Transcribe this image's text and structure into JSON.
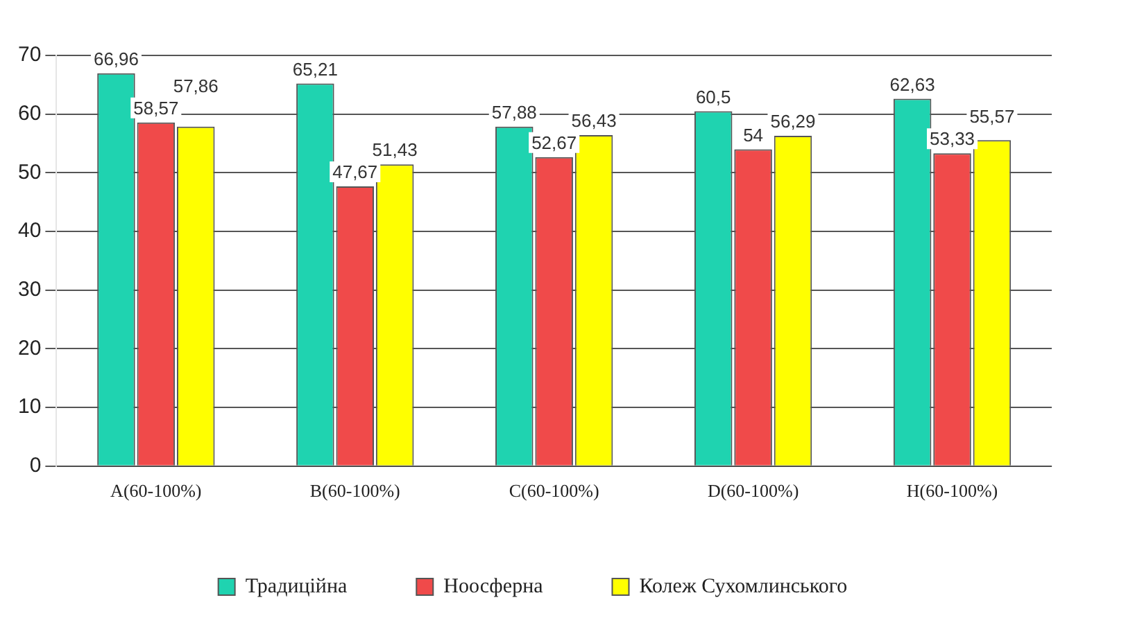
{
  "chart_data": {
    "type": "bar",
    "categories": [
      "A(60-100%)",
      "B(60-100%)",
      "C(60-100%)",
      "D(60-100%)",
      "H(60-100%)"
    ],
    "series": [
      {
        "name": "Традиційна",
        "color": "#1fd3b0",
        "values": [
          66.96,
          65.21,
          57.88,
          60.5,
          62.63
        ],
        "value_labels": [
          "66,96",
          "65,21",
          "57,88",
          "60,5",
          "62,63"
        ]
      },
      {
        "name": "Ноосферна",
        "color": "#f04a4a",
        "values": [
          58.57,
          47.67,
          52.67,
          54,
          53.33
        ],
        "value_labels": [
          "58,57",
          "47,67",
          "52,67",
          "54",
          "53,33"
        ]
      },
      {
        "name": "Колеж Сухомлинського",
        "color": "#ffff00",
        "values": [
          57.86,
          51.43,
          56.43,
          56.29,
          55.57
        ],
        "value_labels": [
          "57,86",
          "51,43",
          "56,43",
          "56,29",
          "55,57"
        ]
      }
    ],
    "ylim": [
      0,
      70
    ],
    "yticks": [
      0,
      10,
      20,
      30,
      40,
      50,
      60,
      70
    ],
    "grid": "y",
    "legend": "bottom"
  }
}
